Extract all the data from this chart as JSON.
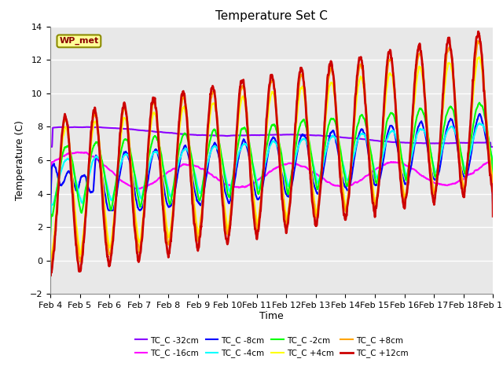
{
  "title": "Temperature Set C",
  "xlabel": "Time",
  "ylabel": "Temperature (C)",
  "ylim": [
    -2,
    14
  ],
  "xlim": [
    0,
    15
  ],
  "x_tick_labels": [
    "Feb 4",
    "Feb 5",
    "Feb 6",
    "Feb 7",
    "Feb 8",
    "Feb 9",
    "Feb 10",
    "Feb 11",
    "Feb 12",
    "Feb 13",
    "Feb 14",
    "Feb 15",
    "Feb 16",
    "Feb 17",
    "Feb 18",
    "Feb 19"
  ],
  "series_order": [
    "TC_C -32cm",
    "TC_C -16cm",
    "TC_C -8cm",
    "TC_C -4cm",
    "TC_C -2cm",
    "TC_C +4cm",
    "TC_C +8cm",
    "TC_C +12cm"
  ],
  "series": {
    "TC_C -32cm": {
      "color": "#8B00FF",
      "lw": 1.5
    },
    "TC_C -16cm": {
      "color": "#FF00FF",
      "lw": 1.5
    },
    "TC_C -8cm": {
      "color": "#0000FF",
      "lw": 1.5
    },
    "TC_C -4cm": {
      "color": "#00FFFF",
      "lw": 1.5
    },
    "TC_C -2cm": {
      "color": "#00FF00",
      "lw": 1.5
    },
    "TC_C +4cm": {
      "color": "#FFFF00",
      "lw": 1.5
    },
    "TC_C +8cm": {
      "color": "#FFA500",
      "lw": 1.5
    },
    "TC_C +12cm": {
      "color": "#CC0000",
      "lw": 2.0
    }
  },
  "legend_order": [
    "TC_C -32cm",
    "TC_C -16cm",
    "TC_C -8cm",
    "TC_C -4cm",
    "TC_C -2cm",
    "TC_C +4cm",
    "TC_C +8cm",
    "TC_C +12cm"
  ],
  "wp_met_label": "WP_met",
  "plot_bg_color": "#E8E8E8",
  "fig_bg_color": "#FFFFFF",
  "grid_color": "#FFFFFF",
  "title_fontsize": 11,
  "label_fontsize": 9,
  "tick_fontsize": 8,
  "legend_fontsize": 7.5
}
